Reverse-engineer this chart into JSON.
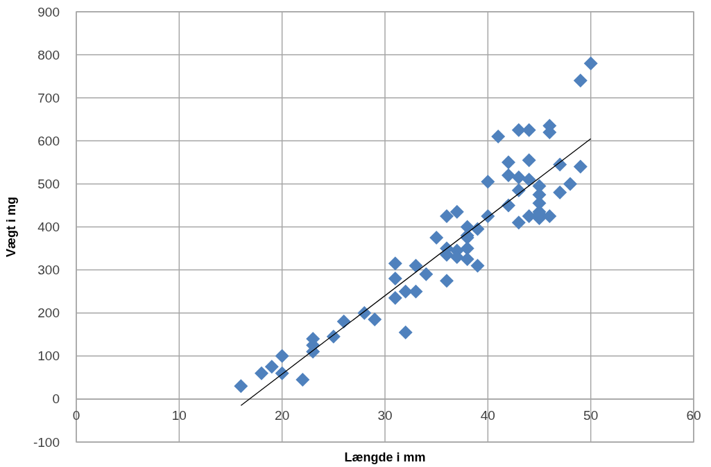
{
  "chart_data": {
    "type": "scatter",
    "xlabel": "Længde i mm",
    "ylabel": "Vægt i mg",
    "xlim": [
      0,
      60
    ],
    "xticks": [
      0,
      10,
      20,
      30,
      40,
      50,
      60
    ],
    "ylim": [
      -100,
      900
    ],
    "yticks": [
      -100,
      0,
      100,
      200,
      300,
      400,
      500,
      600,
      700,
      800,
      900
    ],
    "grid": true,
    "series": [
      {
        "marker": "diamond",
        "color": "#4f81bd",
        "x": [
          16,
          18,
          19,
          20,
          20,
          22,
          23,
          23,
          23,
          25,
          26,
          28,
          29,
          31,
          31,
          31,
          32,
          32,
          33,
          33,
          34,
          35,
          36,
          36,
          36,
          36,
          37,
          37,
          37,
          38,
          38,
          38,
          38,
          38,
          39,
          39,
          40,
          40,
          41,
          42,
          42,
          42,
          43,
          43,
          43,
          43,
          44,
          44,
          44,
          44,
          45,
          45,
          45,
          45,
          45,
          45,
          46,
          46,
          46,
          47,
          47,
          48,
          49,
          49,
          50
        ],
        "values": [
          30,
          60,
          75,
          100,
          60,
          45,
          140,
          125,
          110,
          145,
          180,
          200,
          185,
          315,
          280,
          235,
          250,
          155,
          310,
          250,
          290,
          375,
          425,
          350,
          335,
          275,
          435,
          345,
          330,
          400,
          380,
          375,
          350,
          325,
          395,
          310,
          505,
          425,
          610,
          550,
          520,
          450,
          625,
          515,
          485,
          410,
          625,
          555,
          510,
          425,
          495,
          475,
          455,
          435,
          420,
          430,
          635,
          620,
          425,
          545,
          480,
          500,
          740,
          540,
          780
        ]
      },
      {
        "type": "line",
        "marker": "none",
        "color": "#000000",
        "x": [
          16,
          50
        ],
        "values": [
          -15,
          605
        ]
      }
    ]
  }
}
